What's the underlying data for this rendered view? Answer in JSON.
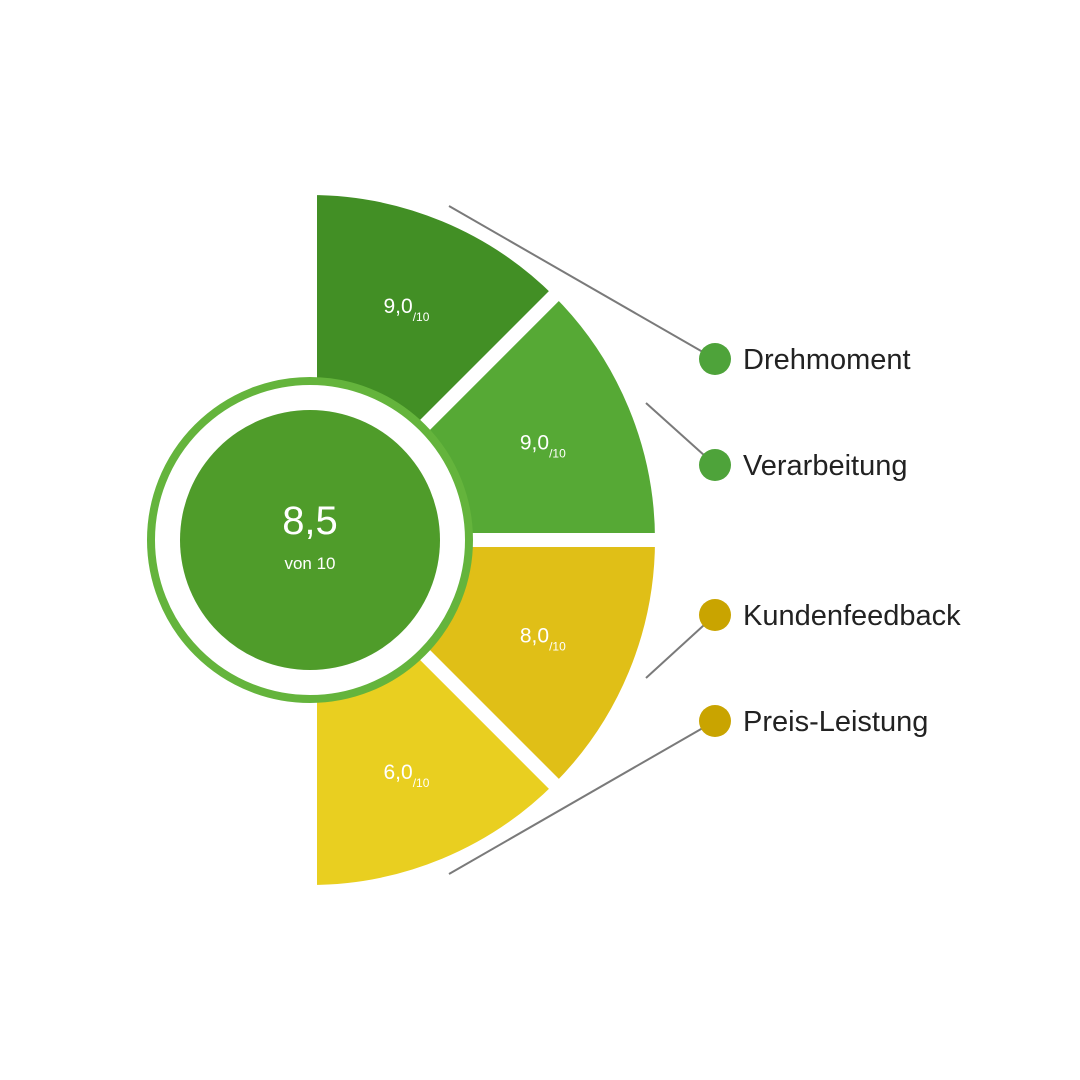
{
  "chart_data": {
    "type": "pie",
    "overall": {
      "value": 8.5,
      "value_text": "8,5",
      "sublabel": "von 10"
    },
    "segments": [
      {
        "name": "Drehmoment",
        "value": 9.0,
        "value_text": "9,0",
        "suffix": "/10",
        "color": "#428f25",
        "dot_color": "#4ea33a"
      },
      {
        "name": "Verarbeitung",
        "value": 9.0,
        "value_text": "9,0",
        "suffix": "/10",
        "color": "#56a935",
        "dot_color": "#4ea33a"
      },
      {
        "name": "Kundenfeedback",
        "value": 8.0,
        "value_text": "8,0",
        "suffix": "/10",
        "color": "#e0bf17",
        "dot_color": "#c9a400"
      },
      {
        "name": "Preis-Leistung",
        "value": 6.0,
        "value_text": "6,0",
        "suffix": "/10",
        "color": "#e9cf20",
        "dot_color": "#c9a400"
      }
    ],
    "center_color": "#4f9c2a",
    "ring_color": "#64b43c",
    "leader_color": "#7a7a7a"
  }
}
